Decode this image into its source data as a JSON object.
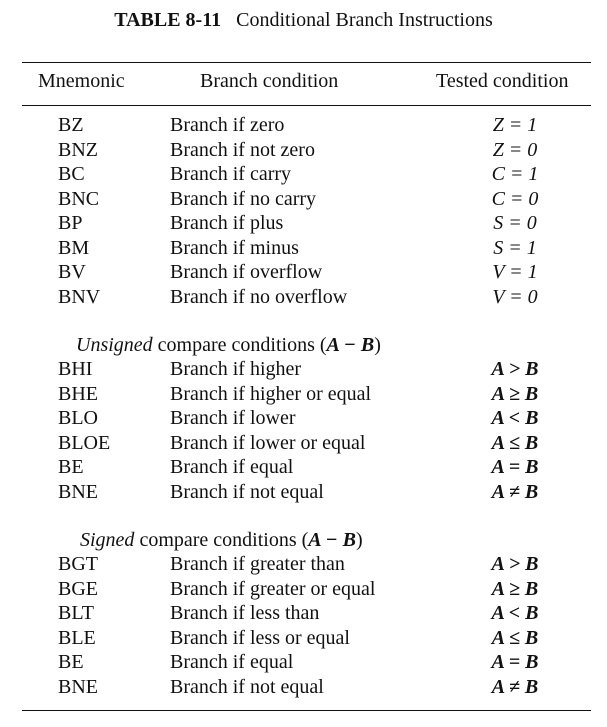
{
  "caption": {
    "label": "TABLE 8-11",
    "title": "Conditional Branch Instructions"
  },
  "headers": {
    "mnemonic": "Mnemonic",
    "branch_condition": "Branch condition",
    "tested_condition": "Tested condition"
  },
  "status_rows": [
    {
      "mnemonic": "BZ",
      "condition": "Branch if zero",
      "tested": "Z = 1"
    },
    {
      "mnemonic": "BNZ",
      "condition": "Branch if not zero",
      "tested": "Z = 0"
    },
    {
      "mnemonic": "BC",
      "condition": "Branch if carry",
      "tested": "C = 1"
    },
    {
      "mnemonic": "BNC",
      "condition": "Branch if no carry",
      "tested": "C = 0"
    },
    {
      "mnemonic": "BP",
      "condition": "Branch if plus",
      "tested": "S = 0"
    },
    {
      "mnemonic": "BM",
      "condition": "Branch if minus",
      "tested": "S = 1"
    },
    {
      "mnemonic": "BV",
      "condition": "Branch if overflow",
      "tested": "V = 1"
    },
    {
      "mnemonic": "BNV",
      "condition": "Branch if no overflow",
      "tested": "V = 0"
    }
  ],
  "unsigned_section": {
    "keyword": "Unsigned",
    "rest": " compare conditions (",
    "expr": "A − B",
    "close": ")"
  },
  "unsigned_rows": [
    {
      "mnemonic": "BHI",
      "condition": "Branch if higher",
      "tested": "A > B"
    },
    {
      "mnemonic": "BHE",
      "condition": "Branch if higher or equal",
      "tested": "A ≥ B"
    },
    {
      "mnemonic": "BLO",
      "condition": "Branch if lower",
      "tested": "A < B"
    },
    {
      "mnemonic": "BLOE",
      "condition": "Branch if lower or equal",
      "tested": "A ≤ B"
    },
    {
      "mnemonic": "BE",
      "condition": "Branch if equal",
      "tested": "A = B"
    },
    {
      "mnemonic": "BNE",
      "condition": "Branch if not equal",
      "tested": "A ≠ B"
    }
  ],
  "signed_section": {
    "keyword": "Signed",
    "rest": " compare conditions (",
    "expr": "A − B",
    "close": ")"
  },
  "signed_rows": [
    {
      "mnemonic": "BGT",
      "condition": "Branch if greater than",
      "tested": "A > B"
    },
    {
      "mnemonic": "BGE",
      "condition": "Branch if greater or equal",
      "tested": "A ≥ B"
    },
    {
      "mnemonic": "BLT",
      "condition": "Branch if less than",
      "tested": "A < B"
    },
    {
      "mnemonic": "BLE",
      "condition": "Branch if less or equal",
      "tested": "A ≤ B"
    },
    {
      "mnemonic": "BE",
      "condition": "Branch if equal",
      "tested": "A = B"
    },
    {
      "mnemonic": "BNE",
      "condition": "Branch if not equal",
      "tested": "A ≠ B"
    }
  ]
}
